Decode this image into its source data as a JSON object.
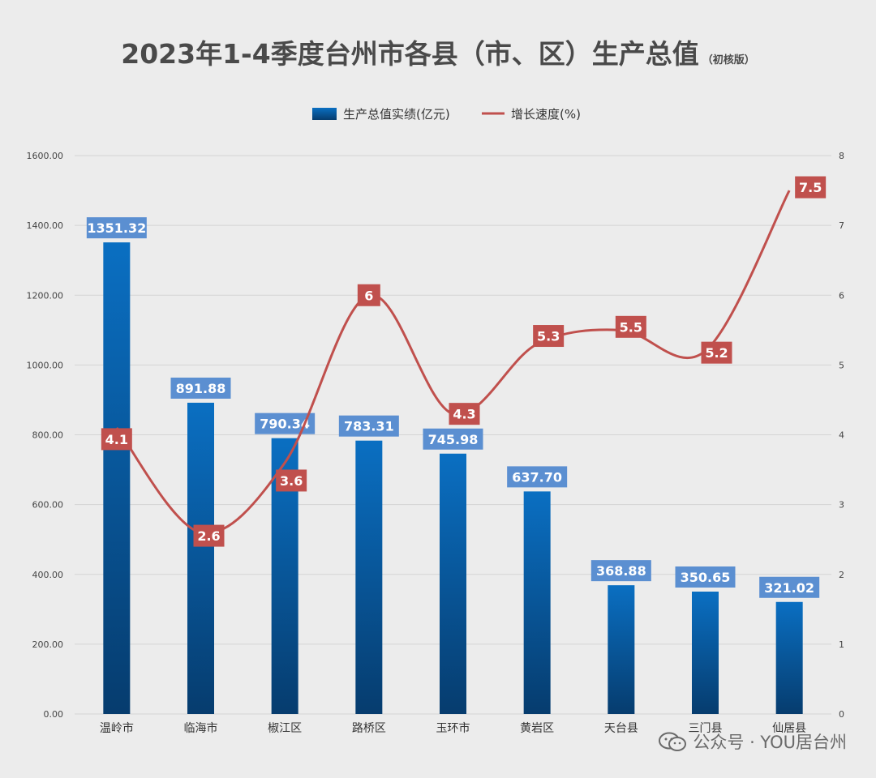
{
  "title": "2023年1-4季度台州市各县（市、区）生产总值",
  "subtitle": "（初核版）",
  "watermark": {
    "text": "公众号 · YOU居台州",
    "icon": "wechat-icon"
  },
  "colors": {
    "background": "#ececec",
    "bar_top": "#0a6fc2",
    "bar_bottom": "#063c6e",
    "bar_label_bg": "#5b8fd1",
    "line": "#c0504d",
    "line_label_bg": "#c0504d",
    "grid": "#d4d4d4",
    "axis_text": "#444444"
  },
  "chart_data": {
    "type": "bar",
    "categories": [
      "温岭市",
      "临海市",
      "椒江区",
      "路桥区",
      "玉环市",
      "黄岩区",
      "天台县",
      "三门县",
      "仙居县"
    ],
    "series": [
      {
        "name": "生产总值实绩(亿元)",
        "kind": "bar",
        "axis": "left",
        "values": [
          1351.32,
          891.88,
          790.34,
          783.31,
          745.98,
          637.7,
          368.88,
          350.65,
          321.02
        ],
        "labels": [
          "1351.32",
          "891.88",
          "790.34",
          "783.31",
          "745.98",
          "637.70",
          "368.88",
          "350.65",
          "321.02"
        ]
      },
      {
        "name": "增长速度(%)",
        "kind": "line",
        "axis": "right",
        "values": [
          4.1,
          2.6,
          3.6,
          6,
          4.3,
          5.3,
          5.5,
          5.2,
          7.5
        ],
        "labels": [
          "4.1",
          "2.6",
          "3.6",
          "6",
          "4.3",
          "5.3",
          "5.5",
          "5.2",
          "7.5"
        ]
      }
    ],
    "y_left": {
      "lim": [
        0,
        1600
      ],
      "ticks": [
        "0.00",
        "200.00",
        "400.00",
        "600.00",
        "800.00",
        "1000.00",
        "1200.00",
        "1400.00",
        "1600.00"
      ]
    },
    "y_right": {
      "lim": [
        0,
        8
      ],
      "ticks": [
        "0",
        "1",
        "2",
        "3",
        "4",
        "5",
        "6",
        "7",
        "8"
      ]
    },
    "grid": true,
    "legend_position": "top-center",
    "line_smooth": true
  }
}
